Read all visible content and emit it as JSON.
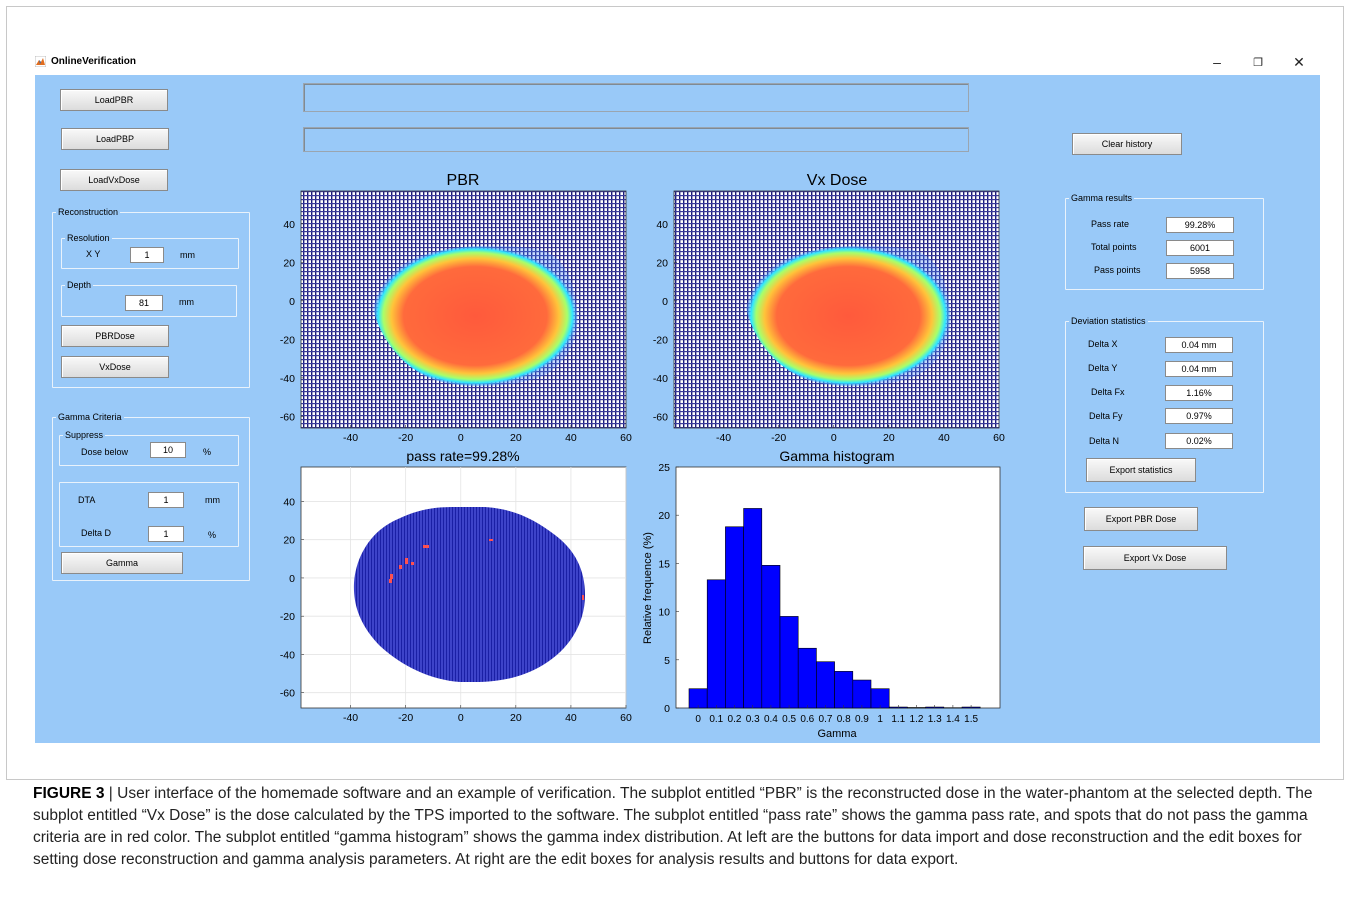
{
  "window": {
    "title": "OnlineVerification",
    "minimize": "–",
    "restore": "❐",
    "close": "✕"
  },
  "left": {
    "load_pbr": "LoadPBR",
    "load_pbp": "LoadPBP",
    "load_vx": "LoadVxDose",
    "reconstruction": {
      "title": "Reconstruction",
      "resolution_title": "Resolution",
      "xy_label": "X Y",
      "xy_value": "1",
      "xy_unit": "mm",
      "depth_title": "Depth",
      "depth_value": "81",
      "depth_unit": "mm",
      "pbr_dose_button": "PBRDose",
      "vx_dose_button": "VxDose"
    },
    "gamma": {
      "title": "Gamma Criteria",
      "suppress_title": "Suppress",
      "dose_below_label": "Dose below",
      "dose_below_value": "10",
      "dose_below_unit": "%",
      "dta_label": "DTA",
      "dta_value": "1",
      "dta_unit": "mm",
      "delta_d_label": "Delta D",
      "delta_d_value": "1",
      "delta_d_unit": "%",
      "gamma_button": "Gamma"
    }
  },
  "paths": {
    "pbr_path": "",
    "pbp_path": ""
  },
  "right": {
    "clear_history": "Clear history",
    "gamma_results": {
      "title": "Gamma results",
      "pass_rate_label": "Pass rate",
      "pass_rate": "99.28%",
      "total_label": "Total points",
      "total": "6001",
      "pass_points_label": "Pass points",
      "pass_points": "5958"
    },
    "deviation": {
      "title": "Deviation statistics",
      "dx_label": "Delta X",
      "dx": "0.04 mm",
      "dy_label": "Delta Y",
      "dy": "0.04 mm",
      "dfx_label": "Delta Fx",
      "dfx": "1.16%",
      "dfy_label": "Delta Fy",
      "dfy": "0.97%",
      "dn_label": "Delta N",
      "dn": "0.02%",
      "export_stats": "Export statistics"
    },
    "export_pbr": "Export PBR Dose",
    "export_vx": "Export Vx Dose"
  },
  "plots": {
    "pbr_title": "PBR",
    "vx_title": "Vx Dose",
    "pass_title": "pass rate=99.28%",
    "hist_title": "Gamma histogram",
    "x_ticks": [
      "-40",
      "-20",
      "0",
      "20",
      "40",
      "60"
    ],
    "y_ticks_top": [
      "40",
      "20",
      "0",
      "-20",
      "-40",
      "-60"
    ],
    "y_ticks_bottom": [
      "40",
      "20",
      "0",
      "-20",
      "-40",
      "-60"
    ]
  },
  "chart_data": {
    "type": "bar",
    "title": "Gamma histogram",
    "xlabel": "Gamma",
    "ylabel": "Relative frequence (%)",
    "ylim": [
      0,
      25
    ],
    "y_ticks": [
      0,
      5,
      10,
      15,
      20,
      25
    ],
    "categories": [
      "0",
      "0.1",
      "0.2",
      "0.3",
      "0.4",
      "0.5",
      "0.6",
      "0.7",
      "0.8",
      "0.9",
      "1",
      "1.1",
      "1.2",
      "1.3",
      "1.4",
      "1.5"
    ],
    "values": [
      2.0,
      13.3,
      18.8,
      20.7,
      14.8,
      9.5,
      6.2,
      4.8,
      3.8,
      2.9,
      2.0,
      0.1,
      0.05,
      0.1,
      0.03,
      0.1
    ],
    "bar_color": "#0000ff"
  },
  "caption": {
    "label": "FIGURE 3",
    "text": "User interface of the homemade software and an example of verification. The subplot entitled “PBR” is the reconstructed dose in the water-phantom at the selected depth. The subplot entitled “Vx Dose” is the dose calculated by the TPS imported to the software. The subplot entitled “pass rate” shows the gamma pass rate, and spots that do not pass the gamma criteria are in red color. The subplot entitled “gamma histogram” shows the gamma index distribution. At left are the buttons for data import and dose reconstruction and the edit boxes for setting dose reconstruction and gamma analysis parameters. At right are the edit boxes for analysis results and buttons for data export."
  }
}
